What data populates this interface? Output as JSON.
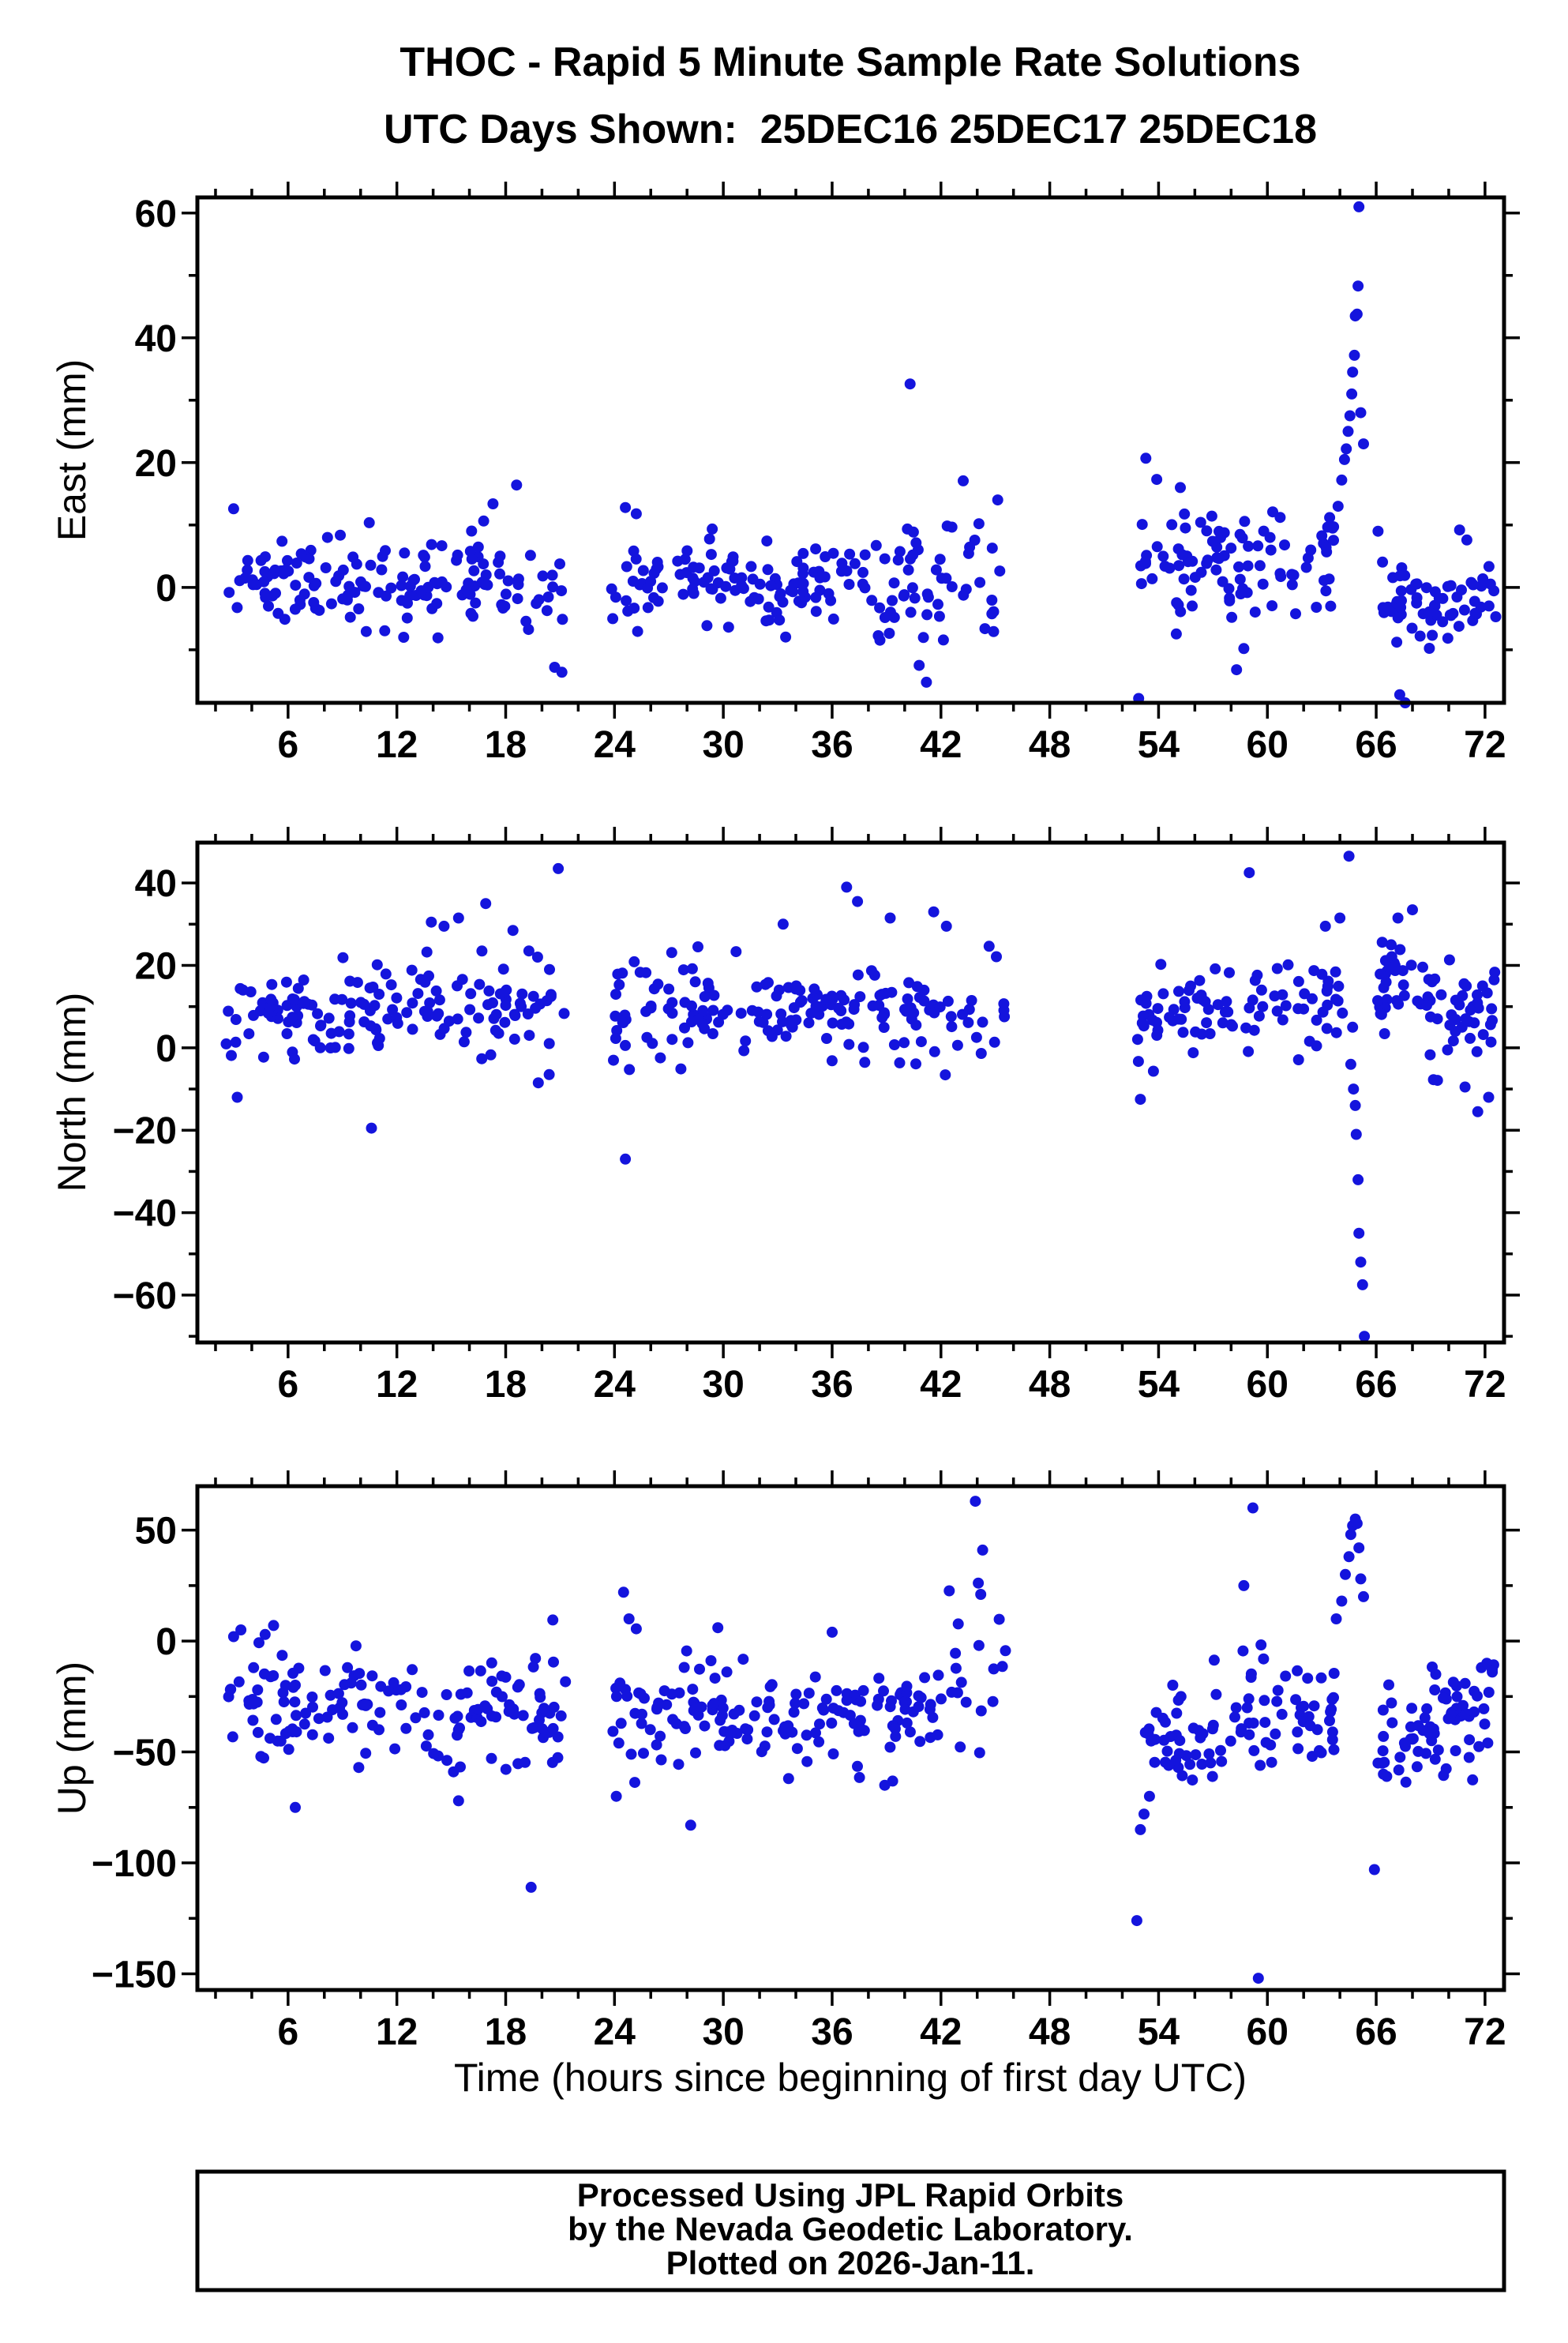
{
  "title": "THOC - Rapid 5 Minute Sample Rate Solutions",
  "subtitle": "UTC Days Shown:  25DEC16 25DEC17 25DEC18",
  "x_axis": {
    "label": "Time (hours since beginning of first day UTC)",
    "ticks_major": [
      6,
      12,
      18,
      24,
      30,
      36,
      42,
      48,
      54,
      60,
      66,
      72
    ],
    "minor_step": 2,
    "domain": [
      1,
      73.05
    ]
  },
  "marker": {
    "shape": "circle",
    "color": "#1414dd",
    "radius": 7
  },
  "footer": {
    "lines": [
      "Processed Using JPL Rapid Orbits",
      "by the Nevada Geodetic Laboratory.",
      "Plotted on 2026-Jan-11."
    ]
  },
  "chart_data": [
    {
      "type": "scatter",
      "panel": "east",
      "ylabel": "East (mm)",
      "units": "mm",
      "y_ticks_major": [
        0,
        20,
        40,
        60
      ],
      "y_minor_step": 10,
      "y_domain": [
        -18.5,
        62.5
      ],
      "seed": 161225,
      "segments": [
        {
          "x0": 2.5,
          "x1": 21.3,
          "n": 148,
          "mean0": 0.3,
          "mean1": 0.6,
          "sd": 3.6,
          "clamp": [
            -8.5,
            11.5
          ]
        },
        {
          "x0": 23.8,
          "x1": 42.0,
          "n": 150,
          "mean0": 1.2,
          "mean1": -0.2,
          "sd": 3.6,
          "clamp": [
            -8.5,
            12.5
          ]
        },
        {
          "x0": 42.0,
          "x1": 45.5,
          "n": 22,
          "mean0": 1.5,
          "mean1": 1.5,
          "sd": 8.5,
          "clamp": [
            -15.5,
            18
          ]
        },
        {
          "x0": 52.8,
          "x1": 63.8,
          "n": 92,
          "mean0": 5.5,
          "mean1": 2.5,
          "sd": 4.4,
          "clamp": [
            -7.5,
            15.5
          ]
        },
        {
          "x0": 66.3,
          "x1": 72.6,
          "n": 62,
          "mean0": -2.0,
          "mean1": -3.0,
          "sd": 4.0,
          "clamp": [
            -10,
            7.5
          ]
        }
      ],
      "outliers": [
        [
          3.0,
          12.6
        ],
        [
          17.3,
          13.4
        ],
        [
          18.6,
          16.4
        ],
        [
          20.7,
          -12.8
        ],
        [
          21.1,
          -13.6
        ],
        [
          24.6,
          12.8
        ],
        [
          25.2,
          11.8
        ],
        [
          40.3,
          32.6
        ],
        [
          40.8,
          -12.5
        ],
        [
          41.2,
          -15.2
        ],
        [
          52.9,
          -17.8
        ],
        [
          53.3,
          20.7
        ],
        [
          53.9,
          17.3
        ],
        [
          55.2,
          16.0
        ],
        [
          58.3,
          -13.2
        ],
        [
          58.7,
          -9.8
        ],
        [
          63.6,
          9.5
        ],
        [
          63.9,
          13.0
        ],
        [
          64.1,
          17.2
        ],
        [
          64.25,
          20.5
        ],
        [
          64.35,
          22.2
        ],
        [
          64.45,
          25.0
        ],
        [
          64.55,
          27.5
        ],
        [
          64.65,
          31.0
        ],
        [
          64.7,
          34.5
        ],
        [
          64.8,
          37.2
        ],
        [
          64.85,
          43.5
        ],
        [
          64.95,
          43.8
        ],
        [
          65.0,
          48.3
        ],
        [
          65.05,
          61.0
        ],
        [
          65.15,
          28.0
        ],
        [
          65.3,
          23.0
        ],
        [
          66.1,
          9.0
        ],
        [
          67.3,
          -17.2
        ],
        [
          67.6,
          -18.5
        ],
        [
          70.6,
          9.2
        ],
        [
          71.0,
          7.6
        ]
      ]
    },
    {
      "type": "scatter",
      "panel": "north",
      "ylabel": "North (mm)",
      "units": "mm",
      "y_ticks_major": [
        -60,
        -40,
        -20,
        0,
        20,
        40
      ],
      "y_minor_step": 10,
      "y_domain": [
        -71.5,
        49.8
      ],
      "seed": 171225,
      "segments": [
        {
          "x0": 2.5,
          "x1": 21.3,
          "n": 148,
          "mean0": 6.5,
          "mean1": 12.5,
          "sd": 5.6,
          "clamp": [
            -6,
            26
          ]
        },
        {
          "x0": 23.8,
          "x1": 42.0,
          "n": 150,
          "mean0": 9.5,
          "mean1": 8.5,
          "sd": 6.0,
          "clamp": [
            -7,
            27
          ]
        },
        {
          "x0": 42.0,
          "x1": 45.5,
          "n": 18,
          "mean0": 8.0,
          "mean1": 8.0,
          "sd": 9.5,
          "clamp": [
            -14,
            30
          ]
        },
        {
          "x0": 52.8,
          "x1": 64.4,
          "n": 88,
          "mean0": 7.5,
          "mean1": 13.5,
          "sd": 6.0,
          "clamp": [
            -6,
            28
          ]
        },
        {
          "x0": 66.0,
          "x1": 72.6,
          "n": 75,
          "mean0": 16.0,
          "mean1": 7.0,
          "sd": 7.0,
          "clamp": [
            -10,
            30
          ]
        }
      ],
      "outliers": [
        [
          3.2,
          -12
        ],
        [
          10.6,
          -19.5
        ],
        [
          13.9,
          30.5
        ],
        [
          14.6,
          29.5
        ],
        [
          15.4,
          31.5
        ],
        [
          16.9,
          35
        ],
        [
          18.4,
          28.5
        ],
        [
          19.8,
          -8.5
        ],
        [
          20.4,
          -6.5
        ],
        [
          20.9,
          43.5
        ],
        [
          24.6,
          -27
        ],
        [
          28.6,
          24.5
        ],
        [
          33.3,
          30
        ],
        [
          36.8,
          39
        ],
        [
          37.4,
          35.5
        ],
        [
          39.2,
          31.5
        ],
        [
          41.6,
          33
        ],
        [
          42.3,
          29.5
        ],
        [
          53.0,
          -12.5
        ],
        [
          59.0,
          42.5
        ],
        [
          63.2,
          29.5
        ],
        [
          64.0,
          31.5
        ],
        [
          64.5,
          46.5
        ],
        [
          64.6,
          -4
        ],
        [
          64.7,
          5
        ],
        [
          64.75,
          -10
        ],
        [
          64.85,
          -14
        ],
        [
          64.9,
          -21
        ],
        [
          65.0,
          -32
        ],
        [
          65.05,
          -45
        ],
        [
          65.15,
          -52
        ],
        [
          65.25,
          -57.5
        ],
        [
          65.35,
          -70
        ],
        [
          67.2,
          31.5
        ],
        [
          68.0,
          33.5
        ],
        [
          70.9,
          -9.5
        ],
        [
          71.6,
          -15.5
        ],
        [
          72.2,
          -12
        ],
        [
          72.5,
          16.5
        ]
      ]
    },
    {
      "type": "scatter",
      "panel": "up",
      "ylabel": "Up (mm)",
      "units": "mm",
      "y_ticks_major": [
        -150,
        -100,
        -50,
        0,
        50
      ],
      "y_minor_step": 25,
      "y_domain": [
        -157.3,
        69.8
      ],
      "seed": 181225,
      "segments": [
        {
          "x0": 2.5,
          "x1": 21.3,
          "n": 150,
          "mean0": -33,
          "mean1": -33,
          "sd": 12.5,
          "clamp": [
            -62,
            8
          ]
        },
        {
          "x0": 23.8,
          "x1": 42.0,
          "n": 155,
          "mean0": -32,
          "mean1": -33,
          "sd": 12.5,
          "clamp": [
            -66,
            6
          ]
        },
        {
          "x0": 42.0,
          "x1": 45.6,
          "n": 20,
          "mean0": -12,
          "mean1": -12,
          "sd": 24,
          "clamp": [
            -58,
            46
          ]
        },
        {
          "x0": 53.2,
          "x1": 64.0,
          "n": 95,
          "mean0": -45,
          "mean1": -28,
          "sd": 13,
          "clamp": [
            -85,
            2
          ]
        },
        {
          "x0": 66.3,
          "x1": 72.6,
          "n": 70,
          "mean0": -44,
          "mean1": -28,
          "sd": 11,
          "clamp": [
            -67,
            -8
          ]
        }
      ],
      "outliers": [
        [
          3.0,
          2
        ],
        [
          3.4,
          5
        ],
        [
          4.1,
          -12
        ],
        [
          5.2,
          7
        ],
        [
          6.4,
          -75
        ],
        [
          9.9,
          -57
        ],
        [
          15.4,
          -72
        ],
        [
          19.4,
          -111
        ],
        [
          20.6,
          9.5
        ],
        [
          24.1,
          -70
        ],
        [
          24.5,
          22
        ],
        [
          24.8,
          10
        ],
        [
          25.2,
          5.5
        ],
        [
          28.2,
          -83
        ],
        [
          29.7,
          6
        ],
        [
          33.6,
          -62
        ],
        [
          36.0,
          4
        ],
        [
          38.9,
          -65
        ],
        [
          43.9,
          63
        ],
        [
          44.3,
          41
        ],
        [
          52.8,
          -126
        ],
        [
          53.0,
          -85
        ],
        [
          53.2,
          -78
        ],
        [
          53.5,
          -70
        ],
        [
          58.7,
          25
        ],
        [
          59.2,
          60
        ],
        [
          59.5,
          -152
        ],
        [
          63.8,
          10
        ],
        [
          64.1,
          18
        ],
        [
          64.3,
          30
        ],
        [
          64.5,
          38
        ],
        [
          64.6,
          48
        ],
        [
          64.7,
          52
        ],
        [
          64.85,
          55
        ],
        [
          64.95,
          53
        ],
        [
          65.05,
          42
        ],
        [
          65.15,
          28
        ],
        [
          65.3,
          20
        ],
        [
          65.9,
          -103
        ],
        [
          66.1,
          -55
        ],
        [
          66.4,
          -60
        ],
        [
          71.8,
          -12
        ],
        [
          72.1,
          -10
        ],
        [
          72.4,
          -14
        ]
      ]
    }
  ]
}
